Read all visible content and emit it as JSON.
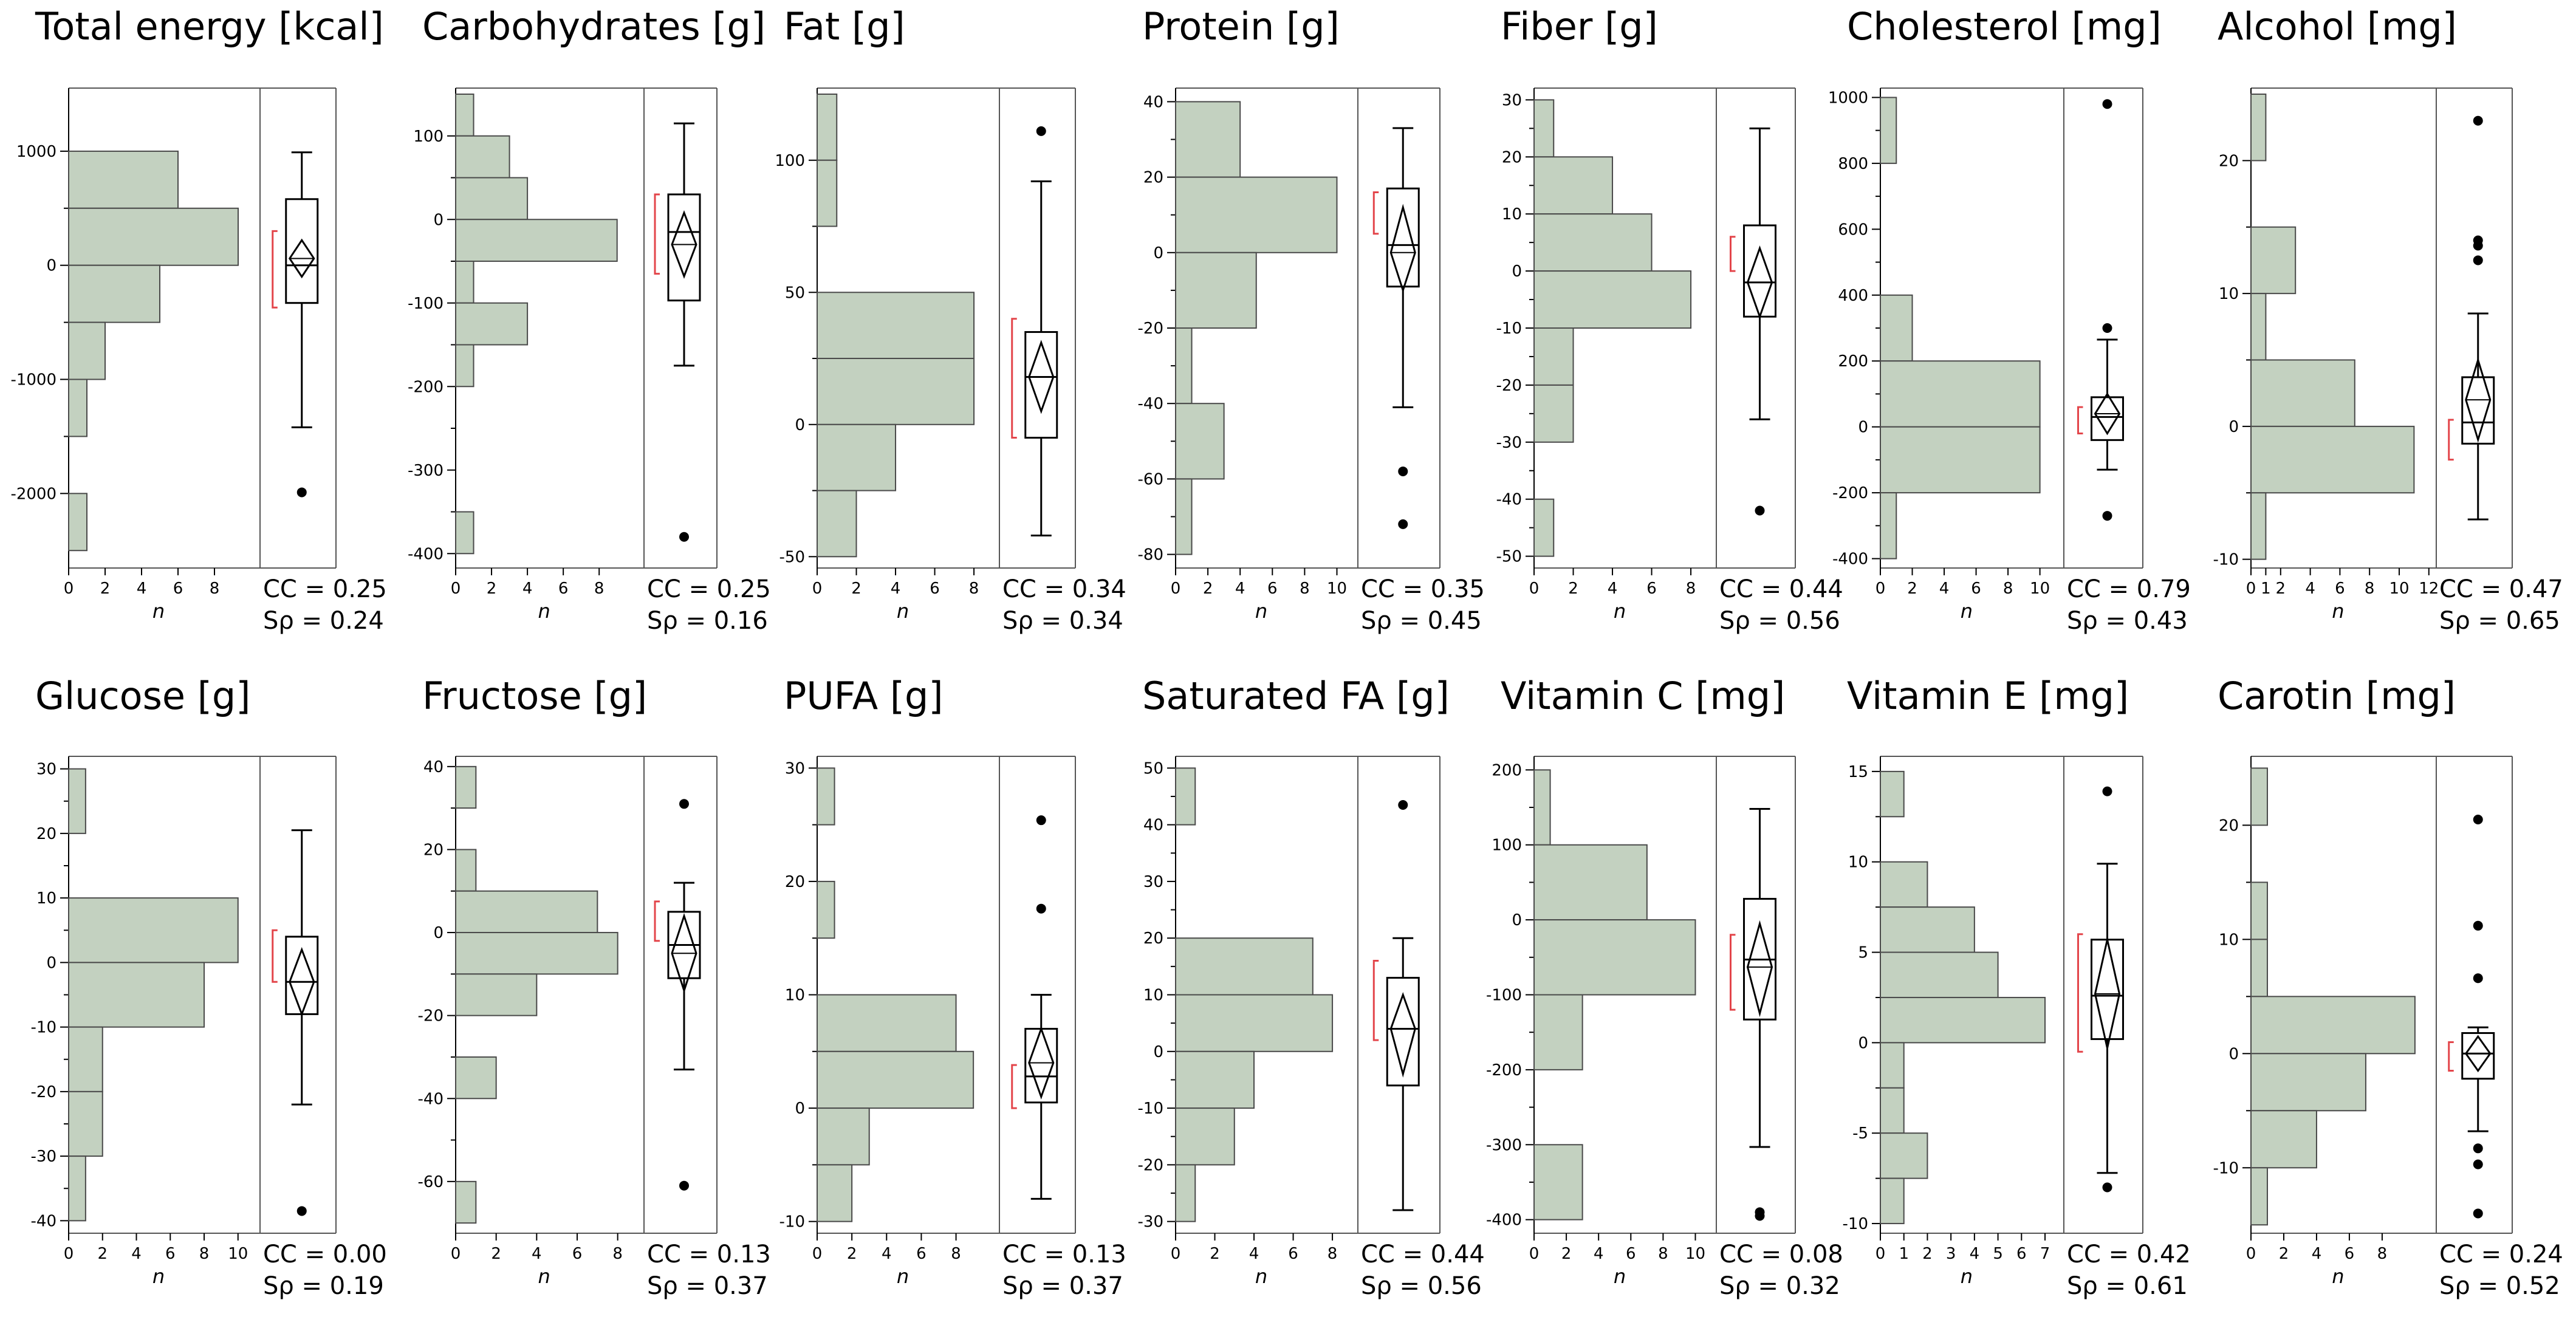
{
  "figure": {
    "x_axis_label": "n"
  },
  "colors": {
    "bar_fill": "#c3d1c0",
    "bar_stroke": "#4a4a4a",
    "ci_bracket": "#e3454a",
    "frame": "#555555",
    "point": "#000000",
    "text": "#000000"
  },
  "chart_data": [
    {
      "type": "histogram-boxplot",
      "title": "Total energy [kcal]",
      "ylim": [
        -2600,
        1500
      ],
      "yticks": [
        1000,
        0,
        -1000,
        -2000
      ],
      "bars": [
        {
          "from": 500,
          "to": 1000,
          "count": 6
        },
        {
          "from": 0,
          "to": 500,
          "count": 9.3
        },
        {
          "from": -500,
          "to": 0,
          "count": 5
        },
        {
          "from": -1000,
          "to": -500,
          "count": 2
        },
        {
          "from": -1500,
          "to": -1000,
          "count": 1
        },
        {
          "from": -2500,
          "to": -2000,
          "count": 1
        }
      ],
      "xlim": [
        0,
        10.5
      ],
      "xticks": [
        0,
        2,
        4,
        6,
        8
      ],
      "box": {
        "min": -1420,
        "q1": -330,
        "median": 0,
        "q3": 580,
        "max": 990,
        "mean": 60,
        "ci": [
          -100,
          220
        ],
        "bracket": [
          -370,
          300
        ],
        "outliers": [
          -1990
        ]
      },
      "cc": "CC = 0.25",
      "sp": "Sρ = 0.24"
    },
    {
      "type": "histogram-boxplot",
      "title": "Carbohydrates [g]",
      "ylim": [
        -410,
        150
      ],
      "yticks": [
        100,
        0,
        -100,
        -200,
        -300,
        -400
      ],
      "bars": [
        {
          "from": 100,
          "to": 150,
          "count": 1
        },
        {
          "from": 50,
          "to": 100,
          "count": 3
        },
        {
          "from": 0,
          "to": 50,
          "count": 4
        },
        {
          "from": -50,
          "to": 0,
          "count": 9
        },
        {
          "from": -100,
          "to": -50,
          "count": 1
        },
        {
          "from": -150,
          "to": -100,
          "count": 4
        },
        {
          "from": -200,
          "to": -150,
          "count": 1
        },
        {
          "from": -400,
          "to": -350,
          "count": 1
        }
      ],
      "xlim": [
        0,
        10.5
      ],
      "xticks": [
        0,
        2,
        4,
        6,
        8
      ],
      "box": {
        "min": -175,
        "q1": -97,
        "median": -15,
        "q3": 30,
        "max": 115,
        "mean": -30,
        "ci": [
          -68,
          8
        ],
        "bracket": [
          -65,
          30
        ],
        "outliers": [
          -380
        ]
      },
      "cc": "CC = 0.25",
      "sp": "Sρ = 0.16"
    },
    {
      "type": "histogram-boxplot",
      "title": "Fat [g]",
      "ylim": [
        -52,
        125
      ],
      "yticks": [
        100,
        50,
        0,
        -50
      ],
      "bars": [
        {
          "from": 100,
          "to": 125,
          "count": 1
        },
        {
          "from": 75,
          "to": 100,
          "count": 1
        },
        {
          "from": 25,
          "to": 50,
          "count": 8
        },
        {
          "from": 0,
          "to": 25,
          "count": 8
        },
        {
          "from": -25,
          "to": 0,
          "count": 4
        },
        {
          "from": -50,
          "to": -25,
          "count": 2
        }
      ],
      "xlim": [
        0,
        9.3
      ],
      "xticks": [
        0,
        2,
        4,
        6,
        8
      ],
      "box": {
        "min": -42,
        "q1": -5,
        "median": 18,
        "q3": 35,
        "max": 92,
        "mean": 18,
        "ci": [
          5,
          31
        ],
        "bracket": [
          -5,
          40
        ],
        "outliers": [
          111
        ]
      },
      "cc": "CC = 0.34",
      "sp": "Sρ = 0.34"
    },
    {
      "type": "histogram-boxplot",
      "title": "Protein [g]",
      "ylim": [
        -82,
        42
      ],
      "yticks": [
        40,
        20,
        0,
        -20,
        -40,
        -60,
        -80
      ],
      "bars": [
        {
          "from": 20,
          "to": 40,
          "count": 4
        },
        {
          "from": 0,
          "to": 20,
          "count": 10
        },
        {
          "from": -20,
          "to": 0,
          "count": 5
        },
        {
          "from": -40,
          "to": -20,
          "count": 1
        },
        {
          "from": -60,
          "to": -40,
          "count": 3
        },
        {
          "from": -80,
          "to": -60,
          "count": 1
        }
      ],
      "xlim": [
        0,
        11.3
      ],
      "xticks": [
        0,
        2,
        4,
        6,
        8,
        10
      ],
      "box": {
        "min": -41,
        "q1": -9,
        "median": 2,
        "q3": 17,
        "max": 33,
        "mean": 0,
        "ci": [
          -10,
          12
        ],
        "bracket": [
          5,
          16
        ],
        "outliers": [
          -58,
          -72
        ]
      },
      "cc": "CC = 0.35",
      "sp": "Sρ = 0.45"
    },
    {
      "type": "histogram-boxplot",
      "title": "Fiber [g]",
      "ylim": [
        -51,
        31
      ],
      "yticks": [
        30,
        20,
        10,
        0,
        -10,
        -20,
        -30,
        -40,
        -50
      ],
      "bars": [
        {
          "from": 20,
          "to": 30,
          "count": 1
        },
        {
          "from": 10,
          "to": 20,
          "count": 4
        },
        {
          "from": 0,
          "to": 10,
          "count": 6
        },
        {
          "from": -10,
          "to": 0,
          "count": 8
        },
        {
          "from": -20,
          "to": -10,
          "count": 2
        },
        {
          "from": -30,
          "to": -20,
          "count": 2
        },
        {
          "from": -50,
          "to": -40,
          "count": 1
        }
      ],
      "xlim": [
        0,
        9.3
      ],
      "xticks": [
        0,
        2,
        4,
        6,
        8
      ],
      "box": {
        "min": -26,
        "q1": -8,
        "median": -2,
        "q3": 8,
        "max": 25,
        "mean": -2,
        "ci": [
          -8,
          4
        ],
        "bracket": [
          0,
          6
        ],
        "outliers": [
          -42
        ]
      },
      "cc": "CC = 0.44",
      "sp": "Sρ = 0.56"
    },
    {
      "type": "histogram-boxplot",
      "title": "Cholesterol [mg]",
      "ylim": [
        -410,
        1010
      ],
      "yticks": [
        1000,
        800,
        600,
        400,
        200,
        0,
        -200,
        -400
      ],
      "bars": [
        {
          "from": 800,
          "to": 1000,
          "count": 1
        },
        {
          "from": 200,
          "to": 400,
          "count": 2
        },
        {
          "from": 0,
          "to": 200,
          "count": 10
        },
        {
          "from": -200,
          "to": 0,
          "count": 10
        },
        {
          "from": -400,
          "to": -200,
          "count": 1
        }
      ],
      "xlim": [
        0,
        11.5
      ],
      "xticks": [
        0,
        2,
        4,
        6,
        8,
        10
      ],
      "box": {
        "min": -130,
        "q1": -40,
        "median": 30,
        "q3": 90,
        "max": 265,
        "mean": 40,
        "ci": [
          -20,
          100
        ],
        "bracket": [
          -20,
          60
        ],
        "outliers": [
          980,
          300,
          -270
        ]
      },
      "cc": "CC = 0.79",
      "sp": "Sρ = 0.43"
    },
    {
      "type": "histogram-boxplot",
      "title": "Alcohol [mg]",
      "ylim": [
        -10.2,
        25
      ],
      "yticks": [
        20,
        10,
        0,
        -10
      ],
      "bars": [
        {
          "from": 20,
          "to": 25,
          "count": 1
        },
        {
          "from": 10,
          "to": 15,
          "count": 3
        },
        {
          "from": 5,
          "to": 10,
          "count": 1
        },
        {
          "from": 0,
          "to": 5,
          "count": 7
        },
        {
          "from": -5,
          "to": 0,
          "count": 11
        },
        {
          "from": -10,
          "to": -5,
          "count": 1
        }
      ],
      "xlim": [
        0,
        12.5
      ],
      "xticks": [
        0,
        1,
        2,
        4,
        6,
        8,
        10,
        12
      ],
      "box": {
        "min": -7,
        "q1": -1.3,
        "median": 0.3,
        "q3": 3.7,
        "max": 8.5,
        "mean": 2,
        "ci": [
          -1,
          5
        ],
        "bracket": [
          -2.5,
          0.5
        ],
        "outliers": [
          23,
          14,
          13.6,
          12.5
        ]
      },
      "cc": "CC = 0.47",
      "sp": "Sρ = 0.65"
    },
    {
      "type": "histogram-boxplot",
      "title": "Glucose [g]",
      "ylim": [
        -41,
        31
      ],
      "yticks": [
        30,
        20,
        10,
        0,
        -10,
        -20,
        -30,
        -40
      ],
      "bars": [
        {
          "from": 20,
          "to": 30,
          "count": 1
        },
        {
          "from": 0,
          "to": 10,
          "count": 10
        },
        {
          "from": -10,
          "to": 0,
          "count": 8
        },
        {
          "from": -20,
          "to": -10,
          "count": 2
        },
        {
          "from": -30,
          "to": -20,
          "count": 2
        },
        {
          "from": -40,
          "to": -30,
          "count": 1
        }
      ],
      "xlim": [
        0,
        11.3
      ],
      "xticks": [
        0,
        2,
        4,
        6,
        8,
        10
      ],
      "box": {
        "min": -22,
        "q1": -8,
        "median": -3,
        "q3": 4,
        "max": 20.5,
        "mean": -3,
        "ci": [
          -8,
          2
        ],
        "bracket": [
          -3,
          5
        ],
        "outliers": [
          -38.5
        ]
      },
      "cc": "CC = 0.00",
      "sp": "Sρ = 0.19"
    },
    {
      "type": "histogram-boxplot",
      "title": "Fructose [g]",
      "ylim": [
        -71,
        41
      ],
      "yticks": [
        40,
        20,
        0,
        -20,
        -40,
        -60
      ],
      "bars": [
        {
          "from": 30,
          "to": 40,
          "count": 1
        },
        {
          "from": 10,
          "to": 20,
          "count": 1
        },
        {
          "from": 0,
          "to": 10,
          "count": 7
        },
        {
          "from": -10,
          "to": 0,
          "count": 8
        },
        {
          "from": -20,
          "to": -10,
          "count": 4
        },
        {
          "from": -40,
          "to": -30,
          "count": 2
        },
        {
          "from": -70,
          "to": -60,
          "count": 1
        }
      ],
      "xlim": [
        0,
        9.3
      ],
      "xticks": [
        0,
        2,
        4,
        6,
        8
      ],
      "box": {
        "min": -33,
        "q1": -11,
        "median": -3,
        "q3": 5,
        "max": 12,
        "mean": -5,
        "ci": [
          -14,
          4
        ],
        "bracket": [
          -2,
          7.5
        ],
        "outliers": [
          31,
          -61
        ]
      },
      "cc": "CC = 0.13",
      "sp": "Sρ = 0.37"
    },
    {
      "type": "histogram-boxplot",
      "title": "PUFA [g]",
      "ylim": [
        -10.5,
        30.5
      ],
      "yticks": [
        30,
        20,
        10,
        0,
        -10
      ],
      "bars": [
        {
          "from": 25,
          "to": 30,
          "count": 1
        },
        {
          "from": 15,
          "to": 20,
          "count": 1
        },
        {
          "from": 5,
          "to": 10,
          "count": 8
        },
        {
          "from": 0,
          "to": 5,
          "count": 9
        },
        {
          "from": -5,
          "to": 0,
          "count": 3
        },
        {
          "from": -10,
          "to": -5,
          "count": 2
        }
      ],
      "xlim": [
        0,
        10.5
      ],
      "xticks": [
        0,
        2,
        4,
        6,
        8
      ],
      "box": {
        "min": -8,
        "q1": 0.5,
        "median": 2.8,
        "q3": 7,
        "max": 10,
        "mean": 4,
        "ci": [
          1,
          7
        ],
        "bracket": [
          0,
          3.8
        ],
        "outliers": [
          25.4,
          17.6
        ]
      },
      "cc": "CC = 0.13",
      "sp": "Sρ = 0.37"
    },
    {
      "type": "histogram-boxplot",
      "title": "Saturated FA [g]",
      "ylim": [
        -31,
        51
      ],
      "yticks": [
        50,
        40,
        30,
        20,
        10,
        0,
        -10,
        -20,
        -30
      ],
      "bars": [
        {
          "from": 40,
          "to": 50,
          "count": 1
        },
        {
          "from": 10,
          "to": 20,
          "count": 7
        },
        {
          "from": 0,
          "to": 10,
          "count": 8
        },
        {
          "from": -10,
          "to": 0,
          "count": 4
        },
        {
          "from": -20,
          "to": -10,
          "count": 3
        },
        {
          "from": -30,
          "to": -20,
          "count": 1
        }
      ],
      "xlim": [
        0,
        9.3
      ],
      "xticks": [
        0,
        2,
        4,
        6,
        8
      ],
      "box": {
        "min": -28,
        "q1": -6,
        "median": 4,
        "q3": 13,
        "max": 20,
        "mean": 4,
        "ci": [
          -4,
          10
        ],
        "bracket": [
          2,
          16
        ],
        "outliers": [
          43.5
        ]
      },
      "cc": "CC = 0.44",
      "sp": "Sρ = 0.56"
    },
    {
      "type": "histogram-boxplot",
      "title": "Vitamin C [mg]",
      "ylim": [
        -410,
        210
      ],
      "yticks": [
        200,
        100,
        0,
        -100,
        -200,
        -300,
        -400
      ],
      "bars": [
        {
          "from": 100,
          "to": 200,
          "count": 1
        },
        {
          "from": 0,
          "to": 100,
          "count": 7
        },
        {
          "from": -100,
          "to": 0,
          "count": 10
        },
        {
          "from": -200,
          "to": -100,
          "count": 3
        },
        {
          "from": -400,
          "to": -300,
          "count": 3
        }
      ],
      "xlim": [
        0,
        11.3
      ],
      "xticks": [
        0,
        2,
        4,
        6,
        8,
        10
      ],
      "box": {
        "min": -303,
        "q1": -133,
        "median": -53,
        "q3": 28,
        "max": 148,
        "mean": -63,
        "ci": [
          -125,
          -5
        ],
        "bracket": [
          -120,
          -20
        ],
        "outliers": [
          -390,
          -395
        ]
      },
      "cc": "CC = 0.08",
      "sp": "Sρ = 0.32"
    },
    {
      "type": "histogram-boxplot",
      "title": "Vitamin E [mg]",
      "ylim": [
        -10.2,
        15.5
      ],
      "yticks": [
        15,
        10,
        5,
        0,
        -5,
        -10
      ],
      "bars": [
        {
          "from": 12.5,
          "to": 15,
          "count": 1
        },
        {
          "from": 7.5,
          "to": 10,
          "count": 2
        },
        {
          "from": 5,
          "to": 7.5,
          "count": 4
        },
        {
          "from": 2.5,
          "to": 5,
          "count": 5
        },
        {
          "from": 0,
          "to": 2.5,
          "count": 7
        },
        {
          "from": -2.5,
          "to": 0,
          "count": 1
        },
        {
          "from": -5,
          "to": -2.5,
          "count": 1
        },
        {
          "from": -7.5,
          "to": -5,
          "count": 2
        },
        {
          "from": -10,
          "to": -7.5,
          "count": 1
        }
      ],
      "xlim": [
        0,
        7.8
      ],
      "xticks": [
        0,
        1,
        2,
        3,
        4,
        5,
        6,
        7
      ],
      "box": {
        "min": -7.2,
        "q1": 0.2,
        "median": 2.6,
        "q3": 5.7,
        "max": 9.9,
        "mean": 2.7,
        "ci": [
          -0.3,
          5.7
        ],
        "bracket": [
          -0.5,
          6
        ],
        "outliers": [
          13.9,
          -8
        ]
      },
      "cc": "CC = 0.42",
      "sp": "Sρ = 0.61"
    },
    {
      "type": "histogram-boxplot",
      "title": "Carotin [mg]",
      "ylim": [
        -15.2,
        25.5
      ],
      "yticks": [
        20,
        10,
        0,
        -10
      ],
      "bars": [
        {
          "from": 20,
          "to": 25,
          "count": 1
        },
        {
          "from": 10,
          "to": 15,
          "count": 1
        },
        {
          "from": 5,
          "to": 10,
          "count": 1
        },
        {
          "from": 0,
          "to": 5,
          "count": 10
        },
        {
          "from": -5,
          "to": 0,
          "count": 7
        },
        {
          "from": -10,
          "to": -5,
          "count": 4
        },
        {
          "from": -15,
          "to": -10,
          "count": 1
        }
      ],
      "xlim": [
        0,
        11.3
      ],
      "xticks": [
        0,
        2,
        4,
        6,
        8
      ],
      "box": {
        "min": -6.8,
        "q1": -2.2,
        "median": 0,
        "q3": 1.8,
        "max": 2.3,
        "mean": 0,
        "ci": [
          -1.5,
          1.5
        ],
        "bracket": [
          -1.5,
          1
        ],
        "outliers": [
          20.5,
          11.2,
          6.6,
          -8.3,
          -9.7,
          -14
        ]
      },
      "cc": "CC = 0.24",
      "sp": "Sρ = 0.52"
    }
  ]
}
